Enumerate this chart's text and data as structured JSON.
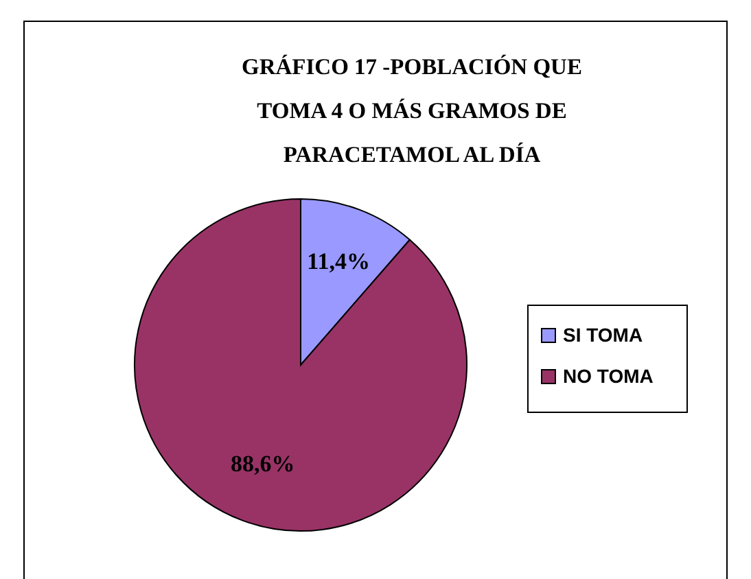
{
  "chart_data": {
    "type": "pie",
    "title": "GRÁFICO 17 -POBLACIÓN QUE TOMA 4 O MÁS GRAMOS DE PARACETAMOL AL DÍA",
    "categories": [
      "SI TOMA",
      "NO TOMA"
    ],
    "values": [
      11.4,
      88.6
    ],
    "colors": [
      "#9999ff",
      "#993366"
    ],
    "value_labels": [
      "11,4%",
      "88,6%"
    ],
    "legend": "right"
  }
}
